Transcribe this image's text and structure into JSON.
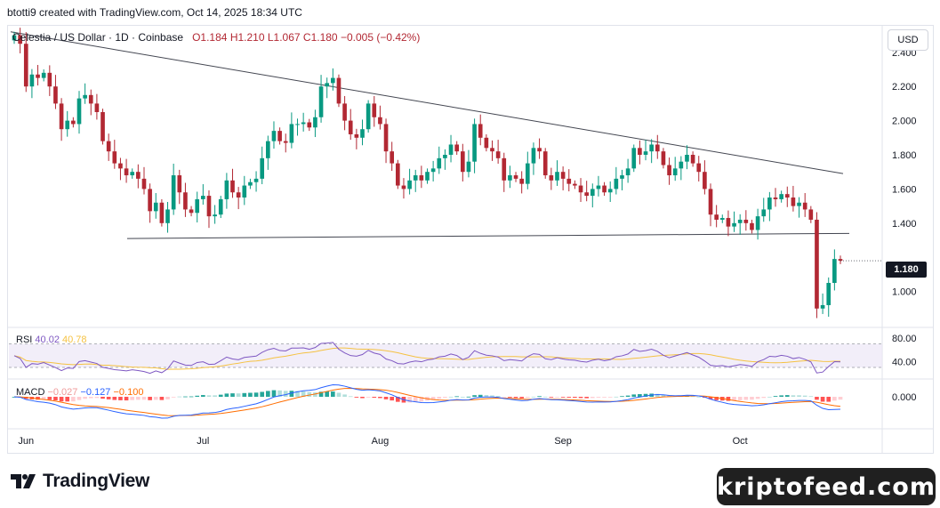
{
  "header": {
    "caption": "btotti9 created with TradingView.com, Oct 14, 2025 18:34 UTC"
  },
  "legend": {
    "symbol": "Celestia / US Dollar · 1D · Coinbase",
    "open": "O1.184",
    "high": "H1.210",
    "low": "L1.067",
    "close": "C1.180",
    "change": "−0.005 (−0.42%)"
  },
  "currency_button": "USD",
  "last_price_tag": "1.180",
  "rsi_legend": {
    "name": "RSI",
    "value": "40.02",
    "ma": "40.78"
  },
  "macd_legend": {
    "name": "MACD",
    "hist": "−0.027",
    "macd": "−0.127",
    "signal": "−0.100"
  },
  "brand": "TradingView",
  "watermark": "kriptofeed.com",
  "colors": {
    "up": "#089981",
    "down": "#b22833",
    "rsi": "#7e57c2",
    "rsi_ma": "#f5c242",
    "macd": "#2962ff",
    "signal": "#ff6d00",
    "trendline": "#434651"
  },
  "chart_data": {
    "type": "candlestick",
    "title": "Celestia / US Dollar · 1D · Coinbase",
    "x_ticks": [
      "Jun",
      "Jul",
      "Aug",
      "Sep",
      "Oct"
    ],
    "y_ticks": [
      "2.400",
      "2.200",
      "2.000",
      "1.800",
      "1.600",
      "1.400",
      "1.000"
    ],
    "ylim": [
      0.8,
      2.55
    ],
    "rsi_ticks": [
      "80.00",
      "40.00"
    ],
    "macd_ticks": [
      "0.000"
    ],
    "trendlines": [
      {
        "name": "descending resistance",
        "from": 2.52,
        "to": 1.69
      },
      {
        "name": "support",
        "from": 1.31,
        "to": 1.34
      }
    ],
    "closes": [
      2.5,
      2.45,
      2.2,
      2.27,
      2.25,
      2.28,
      2.2,
      2.1,
      1.95,
      2.0,
      1.98,
      2.13,
      2.15,
      2.1,
      2.05,
      1.88,
      1.82,
      1.75,
      1.72,
      1.68,
      1.7,
      1.66,
      1.6,
      1.47,
      1.52,
      1.4,
      1.48,
      1.68,
      1.58,
      1.48,
      1.46,
      1.54,
      1.56,
      1.44,
      1.45,
      1.54,
      1.65,
      1.58,
      1.55,
      1.62,
      1.64,
      1.66,
      1.78,
      1.88,
      1.94,
      1.88,
      1.87,
      1.98,
      1.98,
      1.99,
      1.96,
      2.02,
      2.2,
      2.22,
      2.25,
      2.1,
      2.0,
      1.92,
      1.9,
      1.95,
      2.1,
      2.02,
      1.98,
      1.82,
      1.75,
      1.62,
      1.6,
      1.65,
      1.68,
      1.65,
      1.7,
      1.72,
      1.78,
      1.8,
      1.86,
      1.82,
      1.7,
      1.76,
      1.98,
      1.9,
      1.84,
      1.82,
      1.78,
      1.65,
      1.68,
      1.66,
      1.63,
      1.75,
      1.84,
      1.82,
      1.68,
      1.65,
      1.7,
      1.66,
      1.63,
      1.62,
      1.58,
      1.56,
      1.6,
      1.62,
      1.58,
      1.6,
      1.66,
      1.68,
      1.72,
      1.84,
      1.8,
      1.82,
      1.86,
      1.82,
      1.74,
      1.68,
      1.72,
      1.76,
      1.8,
      1.75,
      1.7,
      1.6,
      1.45,
      1.42,
      1.43,
      1.38,
      1.4,
      1.42,
      1.4,
      1.36,
      1.44,
      1.48,
      1.55,
      1.54,
      1.57,
      1.55,
      1.5,
      1.52,
      1.48,
      1.42,
      0.9,
      0.92,
      1.05,
      1.19,
      1.18
    ]
  }
}
